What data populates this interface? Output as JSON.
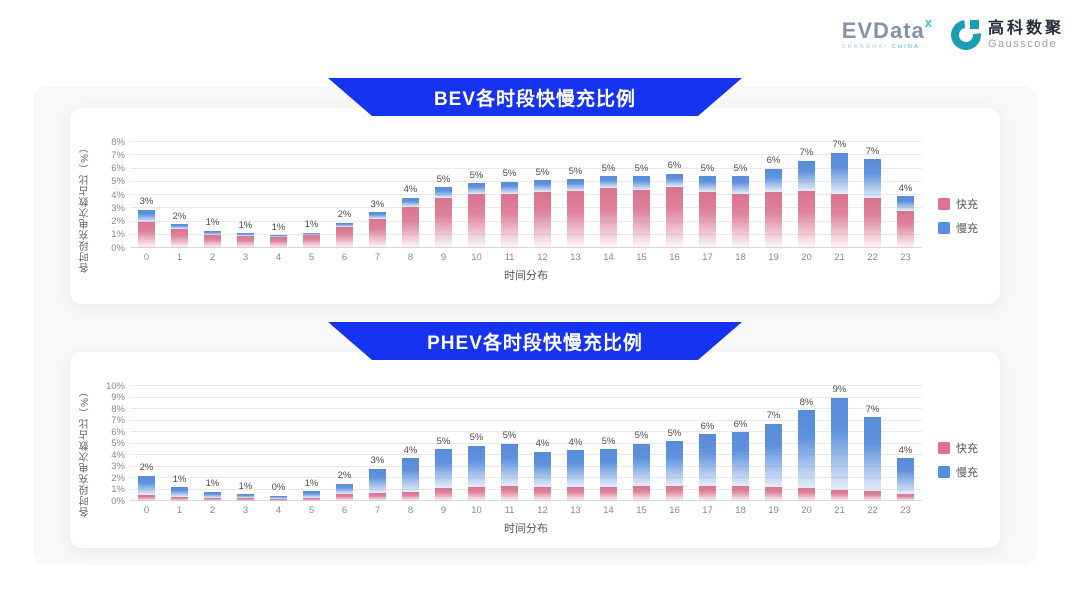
{
  "header": {
    "evdata": {
      "word": "EVData",
      "sup": "x",
      "sub_left": "SHANGHAI",
      "sub_right": "CHINA"
    },
    "gausscode": {
      "cn": "高科数聚",
      "en": "Gausscode"
    }
  },
  "legend": {
    "fast_label": "快充",
    "slow_label": "慢充"
  },
  "colors": {
    "banner_blue": "#1733f2",
    "fast_pink": "#d9738e",
    "slow_blue": "#578cda",
    "board_bg": "#f8f8f9"
  },
  "chart_data": [
    {
      "type": "bar",
      "stacked": true,
      "title": "BEV各时段快慢充比例",
      "xlabel": "时间分布",
      "ylabel": "各时段充电次数占比（%）",
      "ymax": 8,
      "ytick_step": 1,
      "grid": true,
      "legend_position": "right",
      "categories": [
        0,
        1,
        2,
        3,
        4,
        5,
        6,
        7,
        8,
        9,
        10,
        11,
        12,
        13,
        14,
        15,
        16,
        17,
        18,
        19,
        20,
        21,
        22,
        23
      ],
      "series": [
        {
          "name": "快充",
          "color": "#d9738e",
          "values": [
            2.0,
            1.4,
            1.0,
            0.9,
            0.85,
            0.95,
            1.6,
            2.2,
            3.1,
            3.8,
            4.1,
            4.1,
            4.2,
            4.3,
            4.5,
            4.4,
            4.6,
            4.2,
            4.1,
            4.2,
            4.3,
            4.1,
            3.8,
            2.8
          ]
        },
        {
          "name": "慢充",
          "color": "#578cda",
          "values": [
            0.9,
            0.4,
            0.3,
            0.2,
            0.1,
            0.2,
            0.3,
            0.5,
            0.7,
            0.8,
            0.8,
            0.9,
            0.9,
            0.9,
            0.9,
            1.0,
            1.0,
            1.2,
            1.3,
            1.8,
            2.3,
            3.1,
            2.9,
            1.1
          ]
        }
      ],
      "total_labels": [
        "3%",
        "2%",
        "1%",
        "1%",
        "1%",
        "1%",
        "2%",
        "3%",
        "4%",
        "5%",
        "5%",
        "5%",
        "5%",
        "5%",
        "5%",
        "5%",
        "6%",
        "5%",
        "5%",
        "6%",
        "7%",
        "7%",
        "7%",
        "4%"
      ]
    },
    {
      "type": "bar",
      "stacked": true,
      "title": "PHEV各时段快慢充比例",
      "xlabel": "时间分布",
      "ylabel": "各时段充电次数占比（%）",
      "ymax": 10,
      "ytick_step": 1,
      "grid": true,
      "legend_position": "right",
      "categories": [
        0,
        1,
        2,
        3,
        4,
        5,
        6,
        7,
        8,
        9,
        10,
        11,
        12,
        13,
        14,
        15,
        16,
        17,
        18,
        19,
        20,
        21,
        22,
        23
      ],
      "series": [
        {
          "name": "快充",
          "color": "#d9738e",
          "values": [
            0.5,
            0.35,
            0.3,
            0.25,
            0.2,
            0.3,
            0.6,
            0.7,
            0.8,
            1.1,
            1.2,
            1.3,
            1.2,
            1.2,
            1.2,
            1.3,
            1.3,
            1.3,
            1.3,
            1.2,
            1.1,
            1.0,
            0.9,
            0.6
          ]
        },
        {
          "name": "慢充",
          "color": "#578cda",
          "values": [
            1.7,
            0.85,
            0.5,
            0.35,
            0.25,
            0.55,
            0.9,
            2.1,
            2.9,
            3.4,
            3.6,
            3.7,
            3.1,
            3.2,
            3.3,
            3.7,
            3.9,
            4.5,
            4.7,
            5.5,
            6.8,
            8.0,
            6.4,
            3.1
          ]
        }
      ],
      "total_labels": [
        "2%",
        "1%",
        "1%",
        "1%",
        "0%",
        "1%",
        "2%",
        "3%",
        "4%",
        "5%",
        "5%",
        "5%",
        "4%",
        "4%",
        "5%",
        "5%",
        "5%",
        "6%",
        "6%",
        "7%",
        "8%",
        "9%",
        "7%",
        "4%"
      ]
    }
  ]
}
